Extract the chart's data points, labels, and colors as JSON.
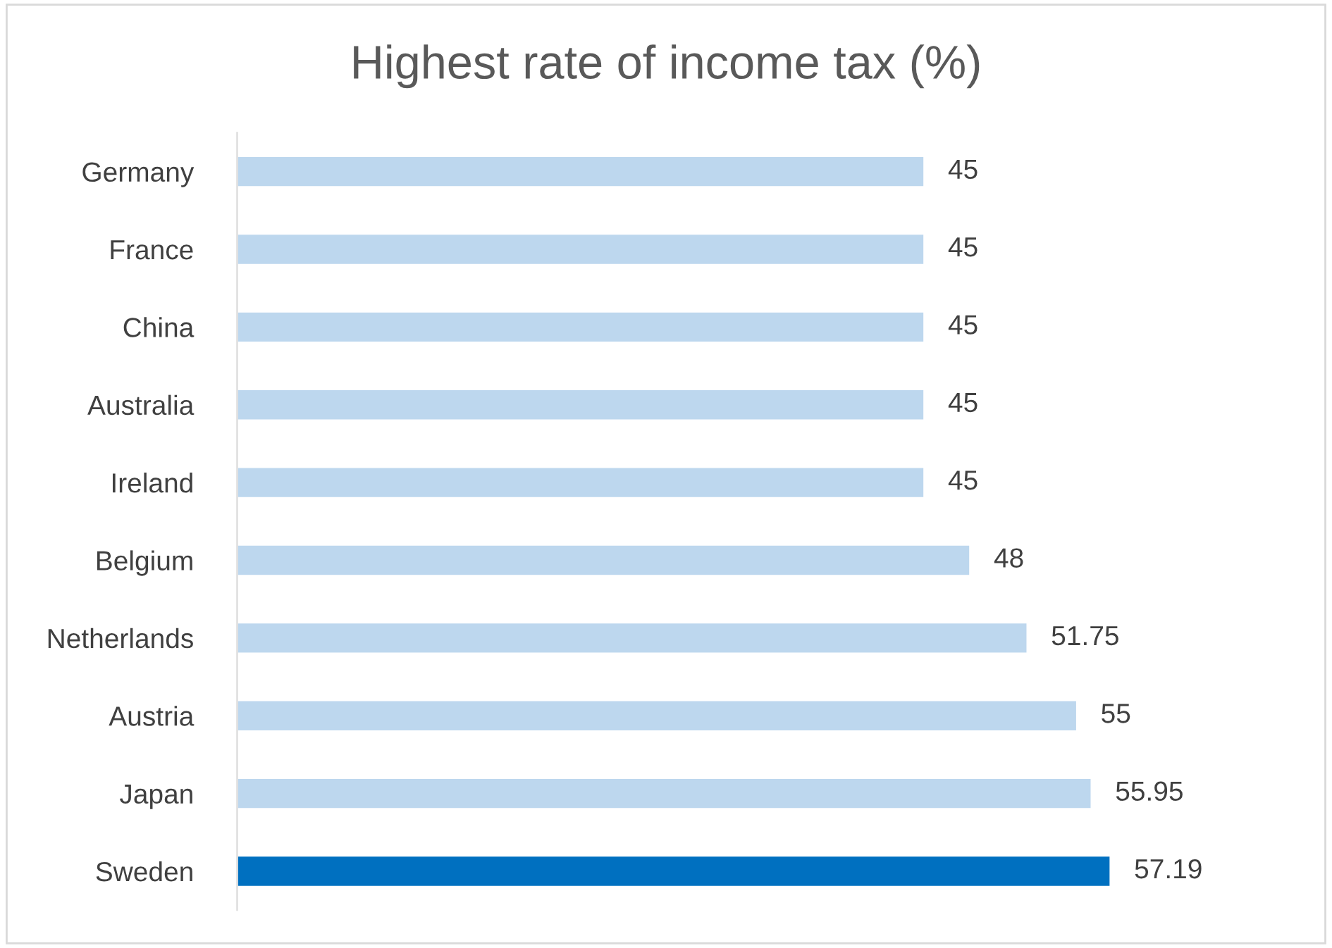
{
  "chart_data": {
    "type": "bar",
    "orientation": "horizontal",
    "title": "Highest rate of income tax (%)",
    "categories": [
      "Germany",
      "France",
      "China",
      "Australia",
      "Ireland",
      "Belgium",
      "Netherlands",
      "Austria",
      "Japan",
      "Sweden"
    ],
    "values": [
      45,
      45,
      45,
      45,
      45,
      48,
      51.75,
      55,
      55.95,
      57.19
    ],
    "colors": [
      "#bdd7ee",
      "#bdd7ee",
      "#bdd7ee",
      "#bdd7ee",
      "#bdd7ee",
      "#bdd7ee",
      "#bdd7ee",
      "#bdd7ee",
      "#bdd7ee",
      "#0070c0"
    ],
    "data_labels": true,
    "tick_labels": "y",
    "grid": false
  }
}
